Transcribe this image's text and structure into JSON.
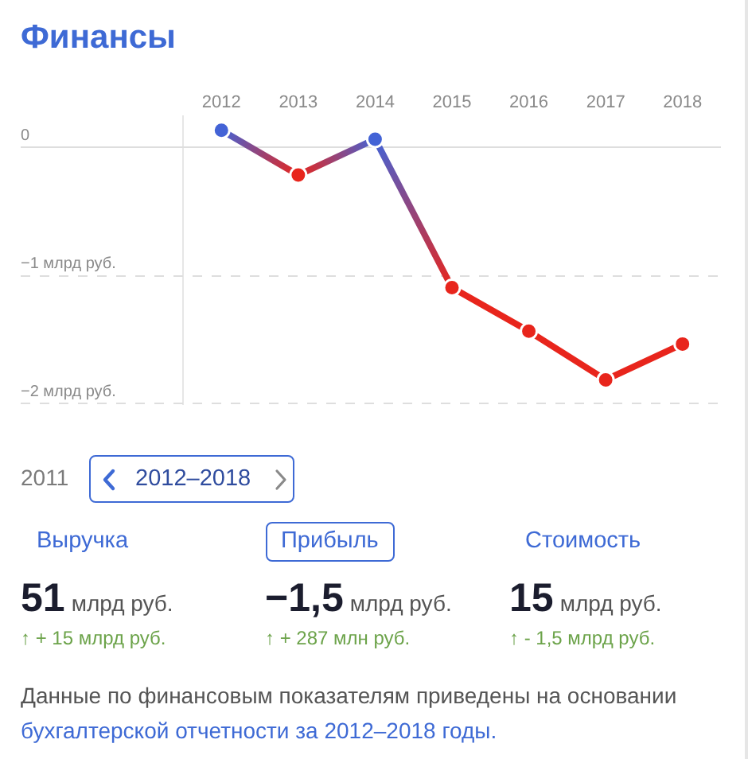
{
  "chart_data": [
    {
      "type": "line",
      "title": "Финансы",
      "categories": [
        "2012",
        "2013",
        "2014",
        "2015",
        "2016",
        "2017",
        "2018"
      ],
      "values": [
        0.14,
        -0.21,
        0.07,
        -1.09,
        -1.43,
        -1.81,
        -1.53
      ],
      "colors": [
        "#4363d6",
        "#e8251c",
        "#4363d6",
        "#e8251c",
        "#e8251c",
        "#e8251c",
        "#e8251c"
      ],
      "ylim": [
        -2,
        0.25
      ],
      "yticks": [
        0,
        {
          "value": -1,
          "label": "−1 млрд руб."
        },
        {
          "value": -2,
          "label": "−2 млрд руб."
        }
      ],
      "grid": "y",
      "marker": "circle",
      "line_style": "solid"
    },
    {
      "type": "other",
      "annotations": [
        "2011",
        "2012–2018",
        "Выручка",
        "51",
        "млрд руб.",
        "↑ + 15 млрд руб.",
        "Прибыль",
        "−1,5",
        "млрд руб.",
        "↑ + 287 млн руб.",
        "Стоимость",
        "15",
        "млрд руб.",
        "↑ - 1,5 млрд руб.",
        "Данные по финансовым показателям приведены на основании",
        "бухгалтерской отчетности за 2012–2018 годы."
      ]
    }
  ]
}
